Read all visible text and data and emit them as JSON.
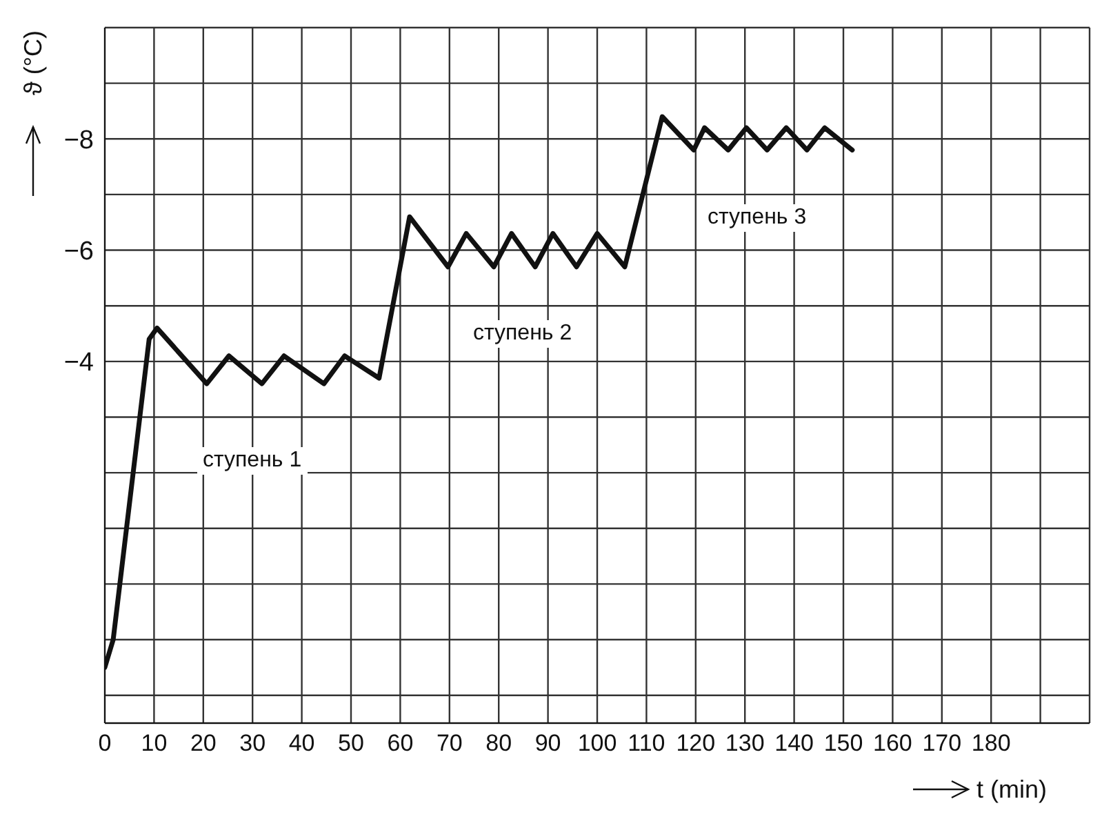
{
  "chart_data": {
    "type": "line",
    "xlabel": "t (min)",
    "ylabel": "ϑ (°C)",
    "x": [
      0,
      1.7,
      9.0,
      10.6,
      20.7,
      25.2,
      31.9,
      36.4,
      44.5,
      48.7,
      55.7,
      61.9,
      69.7,
      73.4,
      79.0,
      82.6,
      87.4,
      91.0,
      95.8,
      100,
      105.6,
      113.2,
      119.6,
      121.8,
      126.6,
      130.3,
      134.5,
      138.4,
      142.6,
      146.2,
      151.8
    ],
    "series": [
      {
        "color": "#111111",
        "values": [
          1.5,
          1.0,
          -4.4,
          -4.6,
          -3.6,
          -4.1,
          -3.6,
          -4.1,
          -3.6,
          -4.1,
          -3.7,
          -6.6,
          -5.7,
          -6.3,
          -5.7,
          -6.3,
          -5.7,
          -6.3,
          -5.7,
          -6.3,
          -5.7,
          -8.4,
          -7.8,
          -8.2,
          -7.8,
          -8.2,
          -7.8,
          -8.2,
          -7.8,
          -8.2,
          -7.8
        ]
      }
    ],
    "xlim": [
      0,
      200
    ],
    "xticks": [
      0,
      10,
      20,
      30,
      40,
      50,
      60,
      70,
      80,
      90,
      100,
      110,
      120,
      130,
      140,
      150,
      160,
      170,
      180,
      {
        "value": 190,
        "label": null
      },
      {
        "value": 200,
        "label": null
      }
    ],
    "ylim": [
      2.5,
      -10
    ],
    "yticks": [
      {
        "value": 2,
        "label": null
      },
      {
        "value": 1,
        "label": null
      },
      {
        "value": 0,
        "label": null
      },
      {
        "value": -1,
        "label": null
      },
      {
        "value": -2,
        "label": null
      },
      {
        "value": -3,
        "label": null
      },
      {
        "value": -4,
        "label": "−4"
      },
      {
        "value": -5,
        "label": null
      },
      {
        "value": -6,
        "label": "−6"
      },
      {
        "value": -7,
        "label": null
      },
      {
        "value": -8,
        "label": "−8"
      },
      {
        "value": -9,
        "label": null
      },
      {
        "value": -10,
        "label": null
      }
    ],
    "grid": true,
    "marker": "none",
    "line_style": "solid",
    "legend": false,
    "annotations": [
      "ступень 1",
      "ступень 2",
      "ступень 3"
    ]
  }
}
